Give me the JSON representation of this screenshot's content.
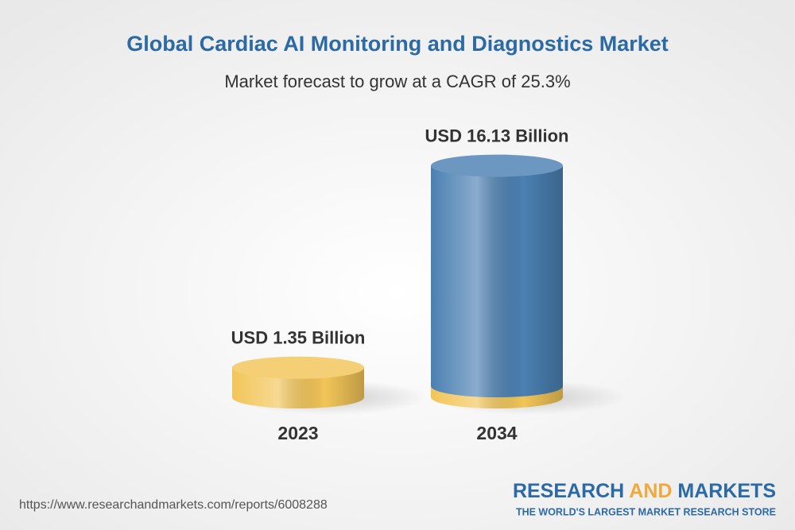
{
  "chart_data": {
    "type": "bar",
    "title": "Global Cardiac AI Monitoring and Diagnostics Market",
    "subtitle": "Market forecast to grow at a CAGR of 25.3%",
    "categories": [
      "2023",
      "2034"
    ],
    "values": [
      1.35,
      16.13
    ],
    "value_labels": [
      "USD 1.35 Billion",
      "USD 16.13 Billion"
    ],
    "colors": [
      "#f2c558",
      "#4b80b2"
    ]
  },
  "footer": {
    "url": "https://www.researchandmarkets.com/reports/6008288",
    "brand": [
      "RESEARCH",
      "AND",
      "MARKETS"
    ],
    "tagline": "THE WORLD'S LARGEST MARKET RESEARCH STORE"
  }
}
